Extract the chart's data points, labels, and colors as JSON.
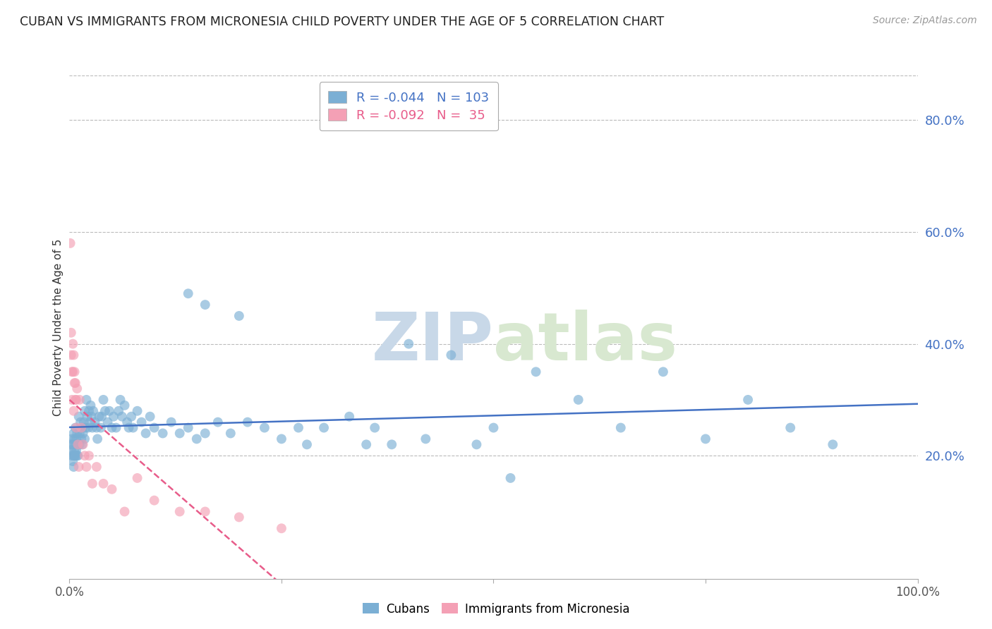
{
  "title": "CUBAN VS IMMIGRANTS FROM MICRONESIA CHILD POVERTY UNDER THE AGE OF 5 CORRELATION CHART",
  "source": "Source: ZipAtlas.com",
  "ylabel": "Child Poverty Under the Age of 5",
  "cubans_R": -0.044,
  "cubans_N": 103,
  "micronesia_R": -0.092,
  "micronesia_N": 35,
  "blue_color": "#7BAFD4",
  "pink_color": "#F4A0B5",
  "line_blue": "#4472C4",
  "line_pink": "#E85C8A",
  "watermark_color": "#C8D8E8",
  "title_fontsize": 12.5,
  "source_fontsize": 10,
  "ylabel_fontsize": 11,
  "cubans_x": [
    0.001,
    0.002,
    0.003,
    0.003,
    0.004,
    0.004,
    0.005,
    0.005,
    0.005,
    0.006,
    0.006,
    0.006,
    0.007,
    0.007,
    0.007,
    0.008,
    0.008,
    0.009,
    0.009,
    0.01,
    0.01,
    0.011,
    0.012,
    0.012,
    0.013,
    0.014,
    0.015,
    0.015,
    0.016,
    0.017,
    0.018,
    0.018,
    0.019,
    0.02,
    0.021,
    0.022,
    0.023,
    0.024,
    0.025,
    0.026,
    0.027,
    0.028,
    0.03,
    0.032,
    0.033,
    0.035,
    0.037,
    0.038,
    0.04,
    0.042,
    0.045,
    0.047,
    0.05,
    0.052,
    0.055,
    0.058,
    0.06,
    0.062,
    0.065,
    0.068,
    0.07,
    0.073,
    0.075,
    0.08,
    0.085,
    0.09,
    0.095,
    0.1,
    0.11,
    0.12,
    0.13,
    0.14,
    0.15,
    0.16,
    0.175,
    0.19,
    0.21,
    0.23,
    0.25,
    0.27,
    0.3,
    0.33,
    0.36,
    0.4,
    0.45,
    0.5,
    0.55,
    0.6,
    0.65,
    0.7,
    0.75,
    0.8,
    0.85,
    0.9,
    0.35,
    0.42,
    0.48,
    0.52,
    0.38,
    0.28,
    0.16,
    0.14,
    0.2
  ],
  "cubans_y": [
    0.22,
    0.21,
    0.2,
    0.23,
    0.19,
    0.22,
    0.2,
    0.18,
    0.24,
    0.21,
    0.2,
    0.23,
    0.22,
    0.2,
    0.25,
    0.21,
    0.23,
    0.2,
    0.24,
    0.22,
    0.2,
    0.27,
    0.24,
    0.22,
    0.26,
    0.23,
    0.25,
    0.22,
    0.24,
    0.26,
    0.28,
    0.23,
    0.25,
    0.3,
    0.27,
    0.25,
    0.28,
    0.26,
    0.29,
    0.27,
    0.25,
    0.28,
    0.26,
    0.25,
    0.23,
    0.27,
    0.25,
    0.27,
    0.3,
    0.28,
    0.26,
    0.28,
    0.25,
    0.27,
    0.25,
    0.28,
    0.3,
    0.27,
    0.29,
    0.26,
    0.25,
    0.27,
    0.25,
    0.28,
    0.26,
    0.24,
    0.27,
    0.25,
    0.24,
    0.26,
    0.24,
    0.25,
    0.23,
    0.24,
    0.26,
    0.24,
    0.26,
    0.25,
    0.23,
    0.25,
    0.25,
    0.27,
    0.25,
    0.4,
    0.38,
    0.25,
    0.35,
    0.3,
    0.25,
    0.35,
    0.23,
    0.3,
    0.25,
    0.22,
    0.22,
    0.23,
    0.22,
    0.16,
    0.22,
    0.22,
    0.47,
    0.49,
    0.45
  ],
  "micronesia_x": [
    0.001,
    0.002,
    0.002,
    0.003,
    0.003,
    0.004,
    0.004,
    0.005,
    0.005,
    0.006,
    0.006,
    0.007,
    0.007,
    0.008,
    0.008,
    0.009,
    0.01,
    0.011,
    0.012,
    0.014,
    0.016,
    0.018,
    0.02,
    0.023,
    0.027,
    0.032,
    0.04,
    0.05,
    0.065,
    0.08,
    0.1,
    0.13,
    0.16,
    0.2,
    0.25
  ],
  "micronesia_y": [
    0.58,
    0.42,
    0.38,
    0.35,
    0.3,
    0.4,
    0.35,
    0.38,
    0.28,
    0.35,
    0.33,
    0.3,
    0.33,
    0.25,
    0.3,
    0.32,
    0.22,
    0.18,
    0.3,
    0.25,
    0.22,
    0.2,
    0.18,
    0.2,
    0.15,
    0.18,
    0.15,
    0.14,
    0.1,
    0.16,
    0.12,
    0.1,
    0.1,
    0.09,
    0.07
  ],
  "xlim": [
    0.0,
    1.0
  ],
  "ylim": [
    -0.02,
    0.88
  ],
  "yticks": [
    0.2,
    0.4,
    0.6,
    0.8
  ],
  "xticks": [
    0.0,
    0.25,
    0.5,
    0.75,
    1.0
  ]
}
